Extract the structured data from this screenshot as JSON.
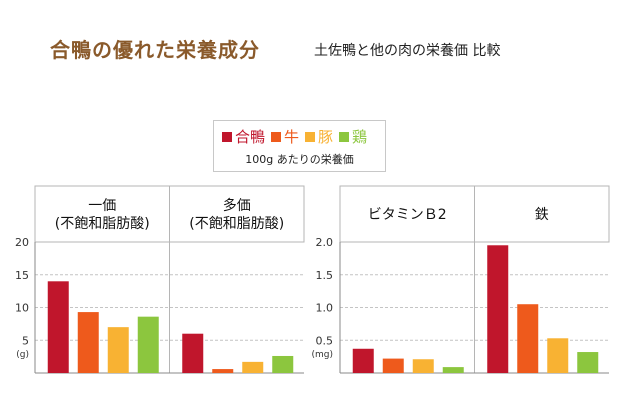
{
  "title": "合鴨の優れた栄養成分",
  "subtitle": "土佐鴨と他の肉の栄養価 比較",
  "legend": {
    "items": [
      {
        "label": "合鴨",
        "color": "#c0162c"
      },
      {
        "label": "牛",
        "color": "#ee5a1c"
      },
      {
        "label": "豚",
        "color": "#f8b233"
      },
      {
        "label": "鶏",
        "color": "#8cc63e"
      }
    ],
    "note": "100g あたりの栄養価"
  },
  "chart_data": [
    {
      "type": "bar",
      "unit": "(g)",
      "ylim": [
        0,
        20
      ],
      "yticks": [
        "20",
        "15",
        "10",
        "5"
      ],
      "grid": true,
      "categories": [
        "合鴨",
        "牛",
        "豚",
        "鶏"
      ],
      "groups": [
        {
          "title_lines": [
            "一価",
            "(不飽和脂肪酸)"
          ],
          "values": [
            14.0,
            9.3,
            7.0,
            8.6
          ]
        },
        {
          "title_lines": [
            "多価",
            "(不飽和脂肪酸)"
          ],
          "values": [
            6.0,
            0.6,
            1.7,
            2.6
          ]
        }
      ]
    },
    {
      "type": "bar",
      "unit": "(mg)",
      "ylim": [
        0,
        2.0
      ],
      "yticks": [
        "2.0",
        "1.5",
        "1.0",
        "0.5"
      ],
      "grid": true,
      "categories": [
        "合鴨",
        "牛",
        "豚",
        "鶏"
      ],
      "groups": [
        {
          "title_lines": [
            "ビタミンＢ2"
          ],
          "values": [
            0.37,
            0.22,
            0.21,
            0.09
          ]
        },
        {
          "title_lines": [
            "鉄"
          ],
          "values": [
            1.95,
            1.05,
            0.53,
            0.32
          ]
        }
      ]
    }
  ]
}
